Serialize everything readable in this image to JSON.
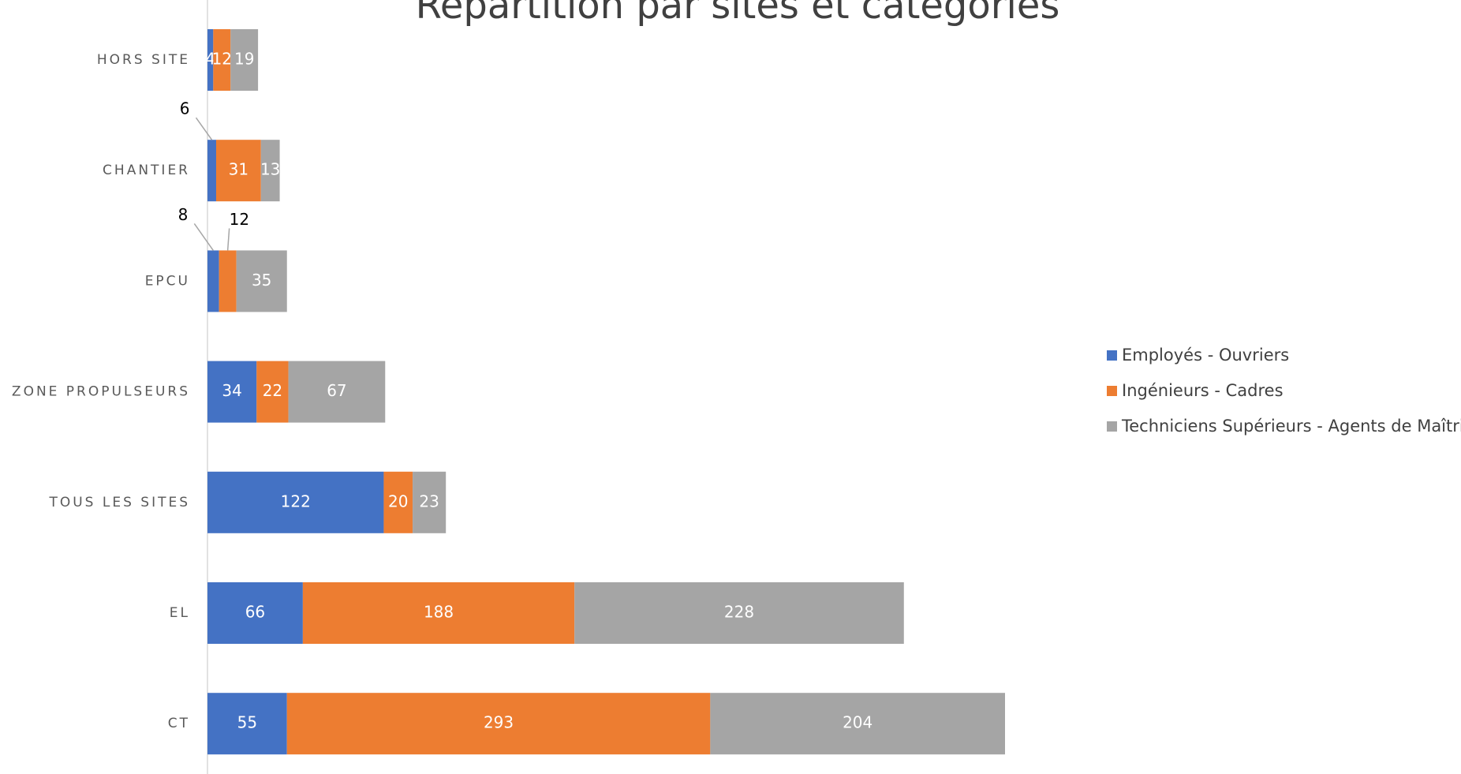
{
  "chart_data": {
    "type": "stacked-bar-horizontal",
    "title": "Répartition par sites et catégories",
    "categories": [
      "HORS SITE",
      "CHANTIER",
      "EPCU",
      "ZONE PROPULSEURS",
      "TOUS LES SITES",
      "EL",
      "CT"
    ],
    "series": [
      {
        "name": "Employés - Ouvriers",
        "color": "#4472c4",
        "values": [
          4,
          6,
          8,
          34,
          122,
          66,
          55
        ]
      },
      {
        "name": "Ingénieurs - Cadres",
        "color": "#ed7d31",
        "values": [
          12,
          31,
          12,
          22,
          20,
          188,
          293
        ]
      },
      {
        "name": "Techniciens Supérieurs - Agents de Maîtrise",
        "color": "#a5a5a5",
        "values": [
          19,
          13,
          35,
          67,
          23,
          228,
          204
        ]
      }
    ],
    "legend": "right"
  }
}
